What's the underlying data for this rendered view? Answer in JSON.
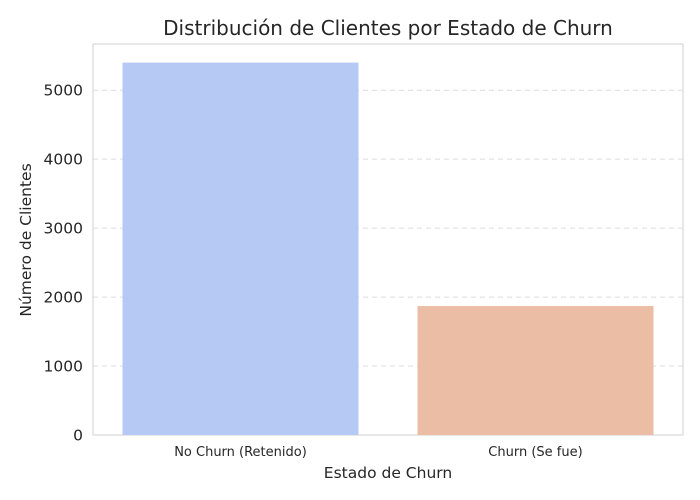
{
  "chart_data": {
    "type": "bar",
    "title": "Distribución de Clientes por Estado de Churn",
    "xlabel": "Estado de Churn",
    "ylabel": "Número de Clientes",
    "categories": [
      "No Churn (Retenido)",
      "Churn (Se fue)"
    ],
    "values": [
      5400,
      1870
    ],
    "colors": [
      "#b5c9f4",
      "#ecbda5"
    ],
    "yticks": [
      0,
      1000,
      2000,
      3000,
      4000,
      5000
    ],
    "ylim": [
      0,
      5670
    ],
    "grid": "y-dashed"
  }
}
